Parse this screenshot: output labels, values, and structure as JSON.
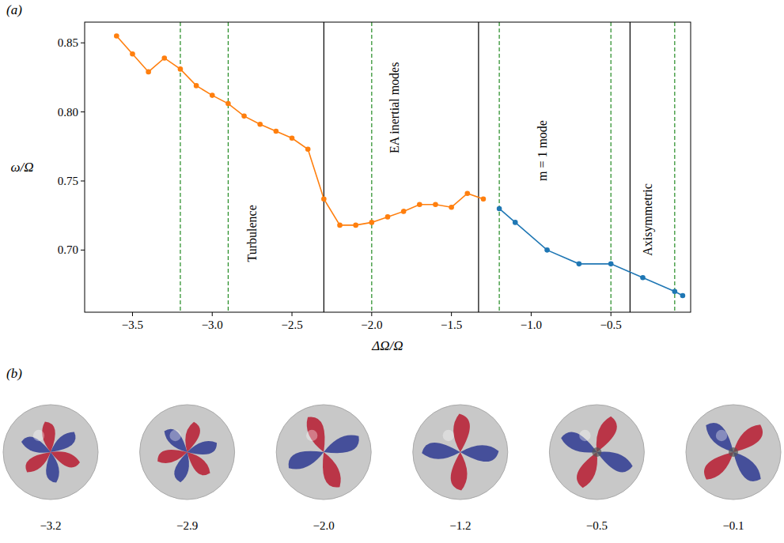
{
  "chart_data": {
    "type": "line",
    "panel_labels": [
      "(a)",
      "(b)"
    ],
    "x_label": "ΔΩ/Ω",
    "y_label": "ω/Ω",
    "xlim": [
      -3.8,
      0.0
    ],
    "ylim": [
      0.655,
      0.865
    ],
    "xticks": [
      {
        "value": -3.5,
        "label": "−3.5"
      },
      {
        "value": -3.0,
        "label": "−3.0"
      },
      {
        "value": -2.5,
        "label": "−2.5"
      },
      {
        "value": -2.0,
        "label": "−2.0"
      },
      {
        "value": -1.5,
        "label": "−1.5"
      },
      {
        "value": -1.0,
        "label": "−1.0"
      },
      {
        "value": -0.5,
        "label": "−0.5"
      }
    ],
    "yticks": [
      {
        "value": 0.7,
        "label": "0.70"
      },
      {
        "value": 0.75,
        "label": "0.75"
      },
      {
        "value": 0.8,
        "label": "0.80"
      },
      {
        "value": 0.85,
        "label": "0.85"
      }
    ],
    "grid": false,
    "series": [
      {
        "color": "#ff7f0e",
        "marker": "circle",
        "line_style": "solid",
        "x": [
          -3.6,
          -3.5,
          -3.4,
          -3.3,
          -3.2,
          -3.1,
          -3.0,
          -2.9,
          -2.8,
          -2.7,
          -2.6,
          -2.5,
          -2.4,
          -2.3,
          -2.2,
          -2.1,
          -2.0,
          -1.9,
          -1.8,
          -1.7,
          -1.6,
          -1.5,
          -1.4,
          -1.3
        ],
        "values": [
          0.855,
          0.842,
          0.829,
          0.839,
          0.831,
          0.819,
          0.812,
          0.806,
          0.797,
          0.791,
          0.786,
          0.781,
          0.773,
          0.737,
          0.718,
          0.718,
          0.72,
          0.724,
          0.728,
          0.733,
          0.733,
          0.731,
          0.741,
          0.737
        ]
      },
      {
        "color": "#1f77b4",
        "marker": "circle",
        "line_style": "solid",
        "x": [
          -1.2,
          -1.1,
          -0.9,
          -0.7,
          -0.5,
          -0.3,
          -0.1,
          -0.05
        ],
        "values": [
          0.73,
          0.72,
          0.7,
          0.69,
          0.69,
          0.68,
          0.67,
          0.667
        ]
      }
    ],
    "reference_lines": {
      "solid": {
        "color": "#000000",
        "line_style": "solid",
        "x": [
          -2.3,
          -1.33,
          -0.38
        ]
      },
      "dashed": {
        "color": "#228b22",
        "line_style": "dashed",
        "x": [
          -3.2,
          -2.9,
          -2.0,
          -1.2,
          -0.5,
          -0.1
        ]
      }
    },
    "annotations": [
      {
        "text": "Turbulence",
        "x": -2.75,
        "y": 0.712
      },
      {
        "text": "EA inertial modes",
        "x": -1.86,
        "y": 0.803
      },
      {
        "text": "m = 1 mode",
        "x": -0.93,
        "y": 0.772
      },
      {
        "text": "Axisymmetric",
        "x": -0.27,
        "y": 0.722
      }
    ],
    "snapshot_labels": [
      "−3.2",
      "−2.9",
      "−2.0",
      "−1.2",
      "−0.5",
      "−0.1"
    ]
  }
}
